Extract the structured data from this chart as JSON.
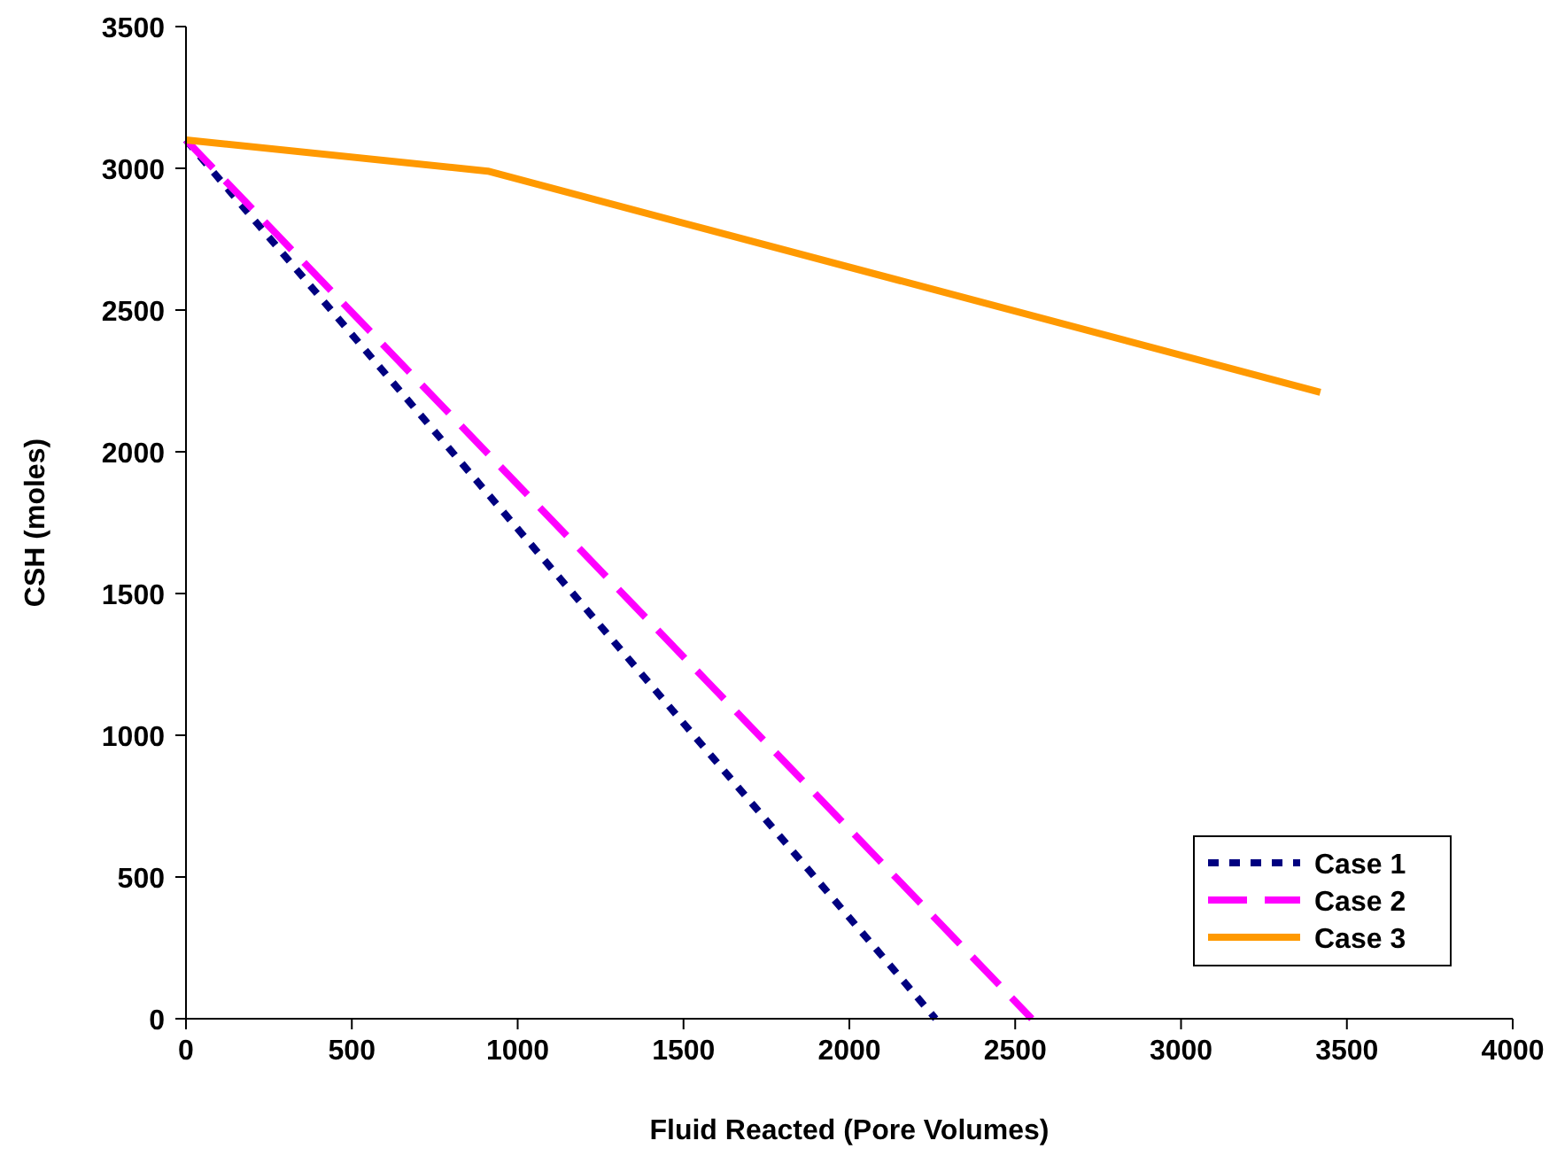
{
  "chart_data": {
    "type": "line",
    "xlabel": "Fluid Reacted (Pore Volumes)",
    "ylabel": "CSH (moles)",
    "xlim": [
      0,
      4000
    ],
    "xticks": [
      0,
      500,
      1000,
      1500,
      2000,
      2500,
      3000,
      3500,
      4000
    ],
    "ylim": [
      0,
      3500
    ],
    "yticks": [
      0,
      500,
      1000,
      1500,
      2000,
      2500,
      3000,
      3500
    ],
    "grid": false,
    "legend": "bottom right",
    "series": [
      {
        "name": "Case 1",
        "color": "#000080",
        "line_style": "dotted",
        "x": [
          0,
          2260
        ],
        "values": [
          3100,
          0
        ]
      },
      {
        "name": "Case 2",
        "color": "#ff00ff",
        "line_style": "dashed",
        "x": [
          0,
          2550
        ],
        "values": [
          3100,
          0
        ]
      },
      {
        "name": "Case 3",
        "color": "#ff9900",
        "line_style": "solid",
        "x": [
          0,
          910,
          3420
        ],
        "values": [
          3100,
          2990,
          2210
        ]
      }
    ]
  }
}
